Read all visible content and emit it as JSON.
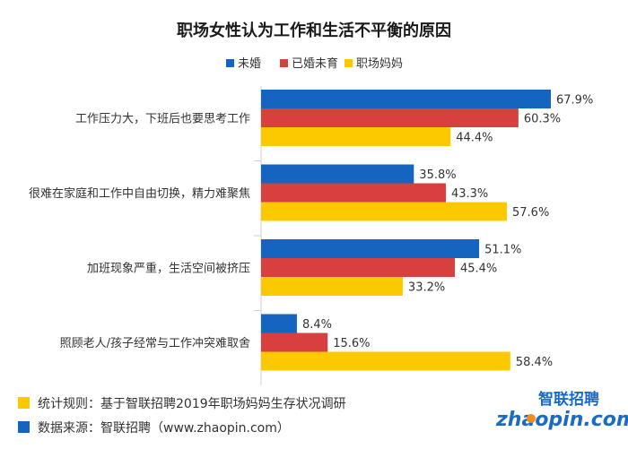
{
  "chart_data": {
    "type": "bar",
    "orientation": "horizontal",
    "title": "职场女性认为工作和生活不平衡的原因",
    "categories": [
      "工作压力大，下班后也要思考工作",
      "很难在家庭和工作中自由切换，精力难聚焦",
      "加班现象严重，生活空间被挤压",
      "照顾老人/孩子经常与工作冲突难取舍"
    ],
    "series": [
      {
        "name": "未婚",
        "color": "#1565c0",
        "values": [
          67.9,
          35.8,
          51.1,
          8.4
        ],
        "labels": [
          "67.9%",
          "35.8%",
          "51.1%",
          "8.4%"
        ]
      },
      {
        "name": "已婚未育",
        "color": "#d8403f",
        "values": [
          60.3,
          43.3,
          45.4,
          15.6
        ],
        "labels": [
          "60.3%",
          "43.3%",
          "45.4%",
          "15.6%"
        ]
      },
      {
        "name": "职场妈妈",
        "color": "#fcc900",
        "values": [
          44.4,
          57.6,
          33.2,
          58.4
        ],
        "labels": [
          "44.4%",
          "57.6%",
          "33.2%",
          "58.4%"
        ]
      }
    ],
    "xlim": [
      0,
      70
    ],
    "legend": "top"
  },
  "footer": {
    "rule_marker_color": "#fcc900",
    "source_marker_color": "#1565c0",
    "rule_text": "统计规则：基于智联招聘2019年职场妈妈生存状况调研",
    "source_text": "数据来源：智联招聘（www.zhaopin.com）"
  },
  "logo": {
    "top": "智联招聘",
    "bottom": "zhaopin.com"
  }
}
